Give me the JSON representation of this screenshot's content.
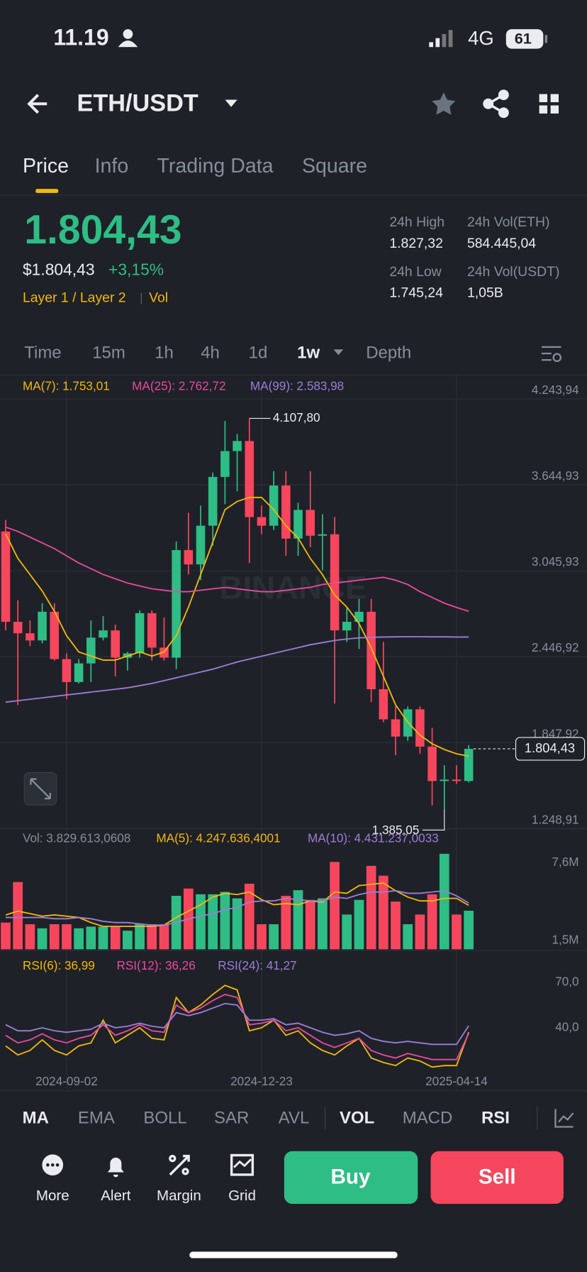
{
  "status_bar": {
    "time": "11.19",
    "network": "4G",
    "battery": "61"
  },
  "header": {
    "pair": "ETH/USDT"
  },
  "tabs": [
    "Price",
    "Info",
    "Trading Data",
    "Square"
  ],
  "ticker": {
    "price": "1.804,43",
    "price_fiat": "$1.804,43",
    "change": "+3,15%",
    "tags": [
      "Layer 1 / Layer 2",
      "Vol"
    ],
    "stats": [
      {
        "label": "24h High",
        "value": "1.827,32"
      },
      {
        "label": "24h Vol(ETH)",
        "value": "584.445,04"
      },
      {
        "label": "24h Low",
        "value": "1.745,24"
      },
      {
        "label": "24h Vol(USDT)",
        "value": "1,05B"
      }
    ]
  },
  "intervals": [
    "Time",
    "15m",
    "1h",
    "4h",
    "1d",
    "1w",
    "Depth"
  ],
  "chart_data": [
    {
      "type": "candlestick",
      "categories": [
        null,
        null,
        null,
        null,
        null,
        "2024-09-02",
        null,
        null,
        null,
        null,
        null,
        null,
        null,
        null,
        null,
        null,
        null,
        null,
        null,
        null,
        null,
        "2024-12-23",
        null,
        null,
        null,
        null,
        null,
        null,
        null,
        null,
        null,
        null,
        null,
        null,
        null,
        null,
        null,
        "2025-04-14",
        null
      ],
      "open": [
        3320,
        2690,
        2610,
        2560,
        2760,
        2430,
        2270,
        2400,
        2580,
        2630,
        2440,
        2470,
        2750,
        2510,
        2440,
        3190,
        3090,
        3360,
        3700,
        3880,
        3950,
        3420,
        3360,
        3640,
        3270,
        3470,
        3290,
        3300,
        2630,
        2690,
        2760,
        2220,
        2010,
        1890,
        2080,
        1820,
        1580,
        1590,
        1580
      ],
      "high": [
        3400,
        2840,
        2700,
        2820,
        2820,
        2470,
        2430,
        2700,
        2730,
        2670,
        2480,
        2770,
        2770,
        2720,
        3250,
        3450,
        3500,
        3730,
        4090,
        4000,
        4107.8,
        3500,
        3740,
        3740,
        3520,
        3740,
        3440,
        3420,
        2790,
        2850,
        2850,
        2550,
        2100,
        2100,
        2100,
        1950,
        1690,
        1690,
        1830
      ],
      "low": [
        2630,
        2110,
        2520,
        2540,
        2420,
        2150,
        2260,
        2270,
        2560,
        2310,
        2350,
        2440,
        2420,
        2420,
        2360,
        3020,
        2980,
        3220,
        3510,
        3600,
        3100,
        3300,
        3330,
        3150,
        3150,
        3210,
        3050,
        2120,
        2550,
        2500,
        2130,
        1990,
        1760,
        1860,
        1770,
        1410,
        1385.05,
        1560,
        1570
      ],
      "close": [
        2690,
        2610,
        2560,
        2760,
        2430,
        2270,
        2400,
        2580,
        2630,
        2440,
        2470,
        2750,
        2510,
        2440,
        3190,
        3090,
        3360,
        3700,
        3880,
        3950,
        3420,
        3360,
        3640,
        3270,
        3470,
        3290,
        3300,
        2630,
        2690,
        2760,
        2220,
        2010,
        1890,
        2080,
        1820,
        1580,
        1590,
        1580,
        1804.43
      ],
      "up_color": "#2ebd85",
      "down_color": "#f6465d",
      "series": [
        {
          "name": "MA(7): 1.753,01",
          "color": "#f0b90b",
          "values": [
            3302,
            3132,
            3019,
            2905,
            2763,
            2593,
            2480,
            2451,
            2423,
            2423,
            2451,
            2480,
            2451,
            2480,
            2593,
            2792,
            3019,
            3246,
            3472,
            3529,
            3557,
            3557,
            3472,
            3359,
            3274,
            3132,
            3019,
            2877,
            2792,
            2678,
            2508,
            2310,
            2111,
            1990,
            1900,
            1840,
            1800,
            1770,
            1753.01
          ]
        },
        {
          "name": "MA(25): 2.762,72",
          "color": "#e84aa0",
          "values": [
            3350,
            3320,
            3280,
            3240,
            3200,
            3150,
            3100,
            3060,
            3020,
            2990,
            2960,
            2940,
            2920,
            2910,
            2900,
            2900,
            2910,
            2920,
            2930,
            2920,
            2910,
            2900,
            2900,
            2910,
            2920,
            2930,
            2950,
            2960,
            2970,
            2980,
            2990,
            3000,
            2980,
            2950,
            2900,
            2860,
            2820,
            2790,
            2762.72
          ]
        },
        {
          "name": "MA(99): 2.583,98",
          "color": "#9b7ed8",
          "values": [
            2130,
            2140,
            2150,
            2160,
            2170,
            2180,
            2190,
            2200,
            2210,
            2220,
            2230,
            2245,
            2260,
            2280,
            2300,
            2320,
            2340,
            2360,
            2385,
            2410,
            2430,
            2450,
            2470,
            2490,
            2510,
            2530,
            2545,
            2560,
            2570,
            2578,
            2582,
            2584,
            2585,
            2586,
            2586,
            2585,
            2585,
            2584,
            2583.98
          ]
        }
      ],
      "ylim": [
        1248.91,
        4243.94
      ],
      "yticks": [
        {
          "value": 1248.91,
          "label": "1.248,91"
        },
        {
          "value": 1847.92,
          "label": "1.847,92"
        },
        {
          "value": 2446.92,
          "label": "2.446,92"
        },
        {
          "value": 3045.93,
          "label": "3.045,93"
        },
        {
          "value": 3644.93,
          "label": "3.644,93"
        },
        {
          "value": 4243.94,
          "label": "4.243,94"
        }
      ],
      "grid": true,
      "high_label": "4.107,80",
      "low_label": "1.385,05",
      "last_label": "1.804,43",
      "watermark": "BINANCE"
    },
    {
      "type": "bar",
      "title": "Vol: 3.829.613,0608",
      "values": [
        2.9,
        6.08,
        2.77,
        2.45,
        2.77,
        2.77,
        2.45,
        2.58,
        2.58,
        2.58,
        2.26,
        2.77,
        2.77,
        2.77,
        5.0,
        5.57,
        5.12,
        5.12,
        5.31,
        4.8,
        5.95,
        2.77,
        2.77,
        5.0,
        5.44,
        4.68,
        4.8,
        7.66,
        3.53,
        4.68,
        7.35,
        6.58,
        4.55,
        2.77,
        3.53,
        5.12,
        8.3,
        3.53,
        3.83
      ],
      "series": [
        {
          "name": "MA(5): 4.247.636,4001",
          "color": "#f0b90b",
          "values": [
            3.5,
            3.8,
            3.6,
            3.4,
            3.5,
            3.4,
            3.3,
            2.9,
            2.6,
            2.6,
            2.6,
            2.6,
            2.6,
            2.7,
            3.3,
            3.8,
            4.3,
            4.9,
            5.2,
            5.1,
            5.3,
            4.7,
            4.3,
            4.4,
            4.3,
            4.6,
            4.5,
            5.3,
            5.2,
            5.8,
            5.9,
            6.0,
            5.4,
            4.9,
            4.6,
            4.6,
            4.8,
            4.8,
            4.25
          ]
        },
        {
          "name": "MA(10): 4.431.237,0033",
          "color": "#9b7ed8",
          "values": [
            3.3,
            3.3,
            3.3,
            3.3,
            3.2,
            3.2,
            3.3,
            3.2,
            3.0,
            2.9,
            2.9,
            2.8,
            2.7,
            2.7,
            2.9,
            3.2,
            3.4,
            3.6,
            3.9,
            4.1,
            4.5,
            4.6,
            4.6,
            4.8,
            4.7,
            4.6,
            4.6,
            4.9,
            4.8,
            5.1,
            5.3,
            5.3,
            5.4,
            5.2,
            5.2,
            5.3,
            5.4,
            5.0,
            4.43
          ]
        }
      ],
      "ylim": [
        0.8,
        8.5
      ],
      "yticks": [
        {
          "value": 1.5,
          "label": "1,5M"
        },
        {
          "value": 7.6,
          "label": "7,6M"
        }
      ]
    },
    {
      "type": "line",
      "series": [
        {
          "name": "RSI(6): 36,99",
          "color": "#f0b90b",
          "values": [
            28,
            22,
            25,
            32,
            25,
            22,
            28,
            30,
            45,
            30,
            35,
            40,
            33,
            32,
            60,
            50,
            55,
            62,
            68,
            65,
            38,
            40,
            45,
            35,
            38,
            30,
            25,
            22,
            28,
            33,
            20,
            17,
            15,
            20,
            18,
            14,
            15,
            15,
            36.99
          ]
        },
        {
          "name": "RSI(12): 36,26",
          "color": "#e84aa0",
          "values": [
            35,
            30,
            32,
            36,
            32,
            30,
            33,
            35,
            42,
            35,
            38,
            42,
            38,
            37,
            55,
            50,
            53,
            58,
            62,
            60,
            42,
            43,
            45,
            38,
            40,
            35,
            30,
            27,
            30,
            33,
            25,
            22,
            20,
            23,
            21,
            19,
            19,
            19,
            36.26
          ]
        },
        {
          "name": "RSI(24): 41,27",
          "color": "#9b7ed8",
          "values": [
            42,
            38,
            38,
            40,
            38,
            37,
            38,
            39,
            43,
            40,
            41,
            43,
            41,
            40,
            50,
            48,
            50,
            53,
            56,
            55,
            45,
            45,
            46,
            42,
            43,
            40,
            37,
            35,
            36,
            38,
            33,
            31,
            30,
            31,
            30,
            29,
            29,
            29,
            41.27
          ]
        }
      ],
      "ylim": [
        12,
        87
      ],
      "yticks": [
        {
          "value": 40,
          "label": "40,0"
        },
        {
          "value": 70,
          "label": "70,0"
        }
      ]
    }
  ],
  "indicators": [
    "MA",
    "EMA",
    "BOLL",
    "SAR",
    "AVL",
    "VOL",
    "MACD",
    "RSI"
  ],
  "actions": [
    "More",
    "Alert",
    "Margin",
    "Grid"
  ],
  "buy": "Buy",
  "sell": "Sell"
}
